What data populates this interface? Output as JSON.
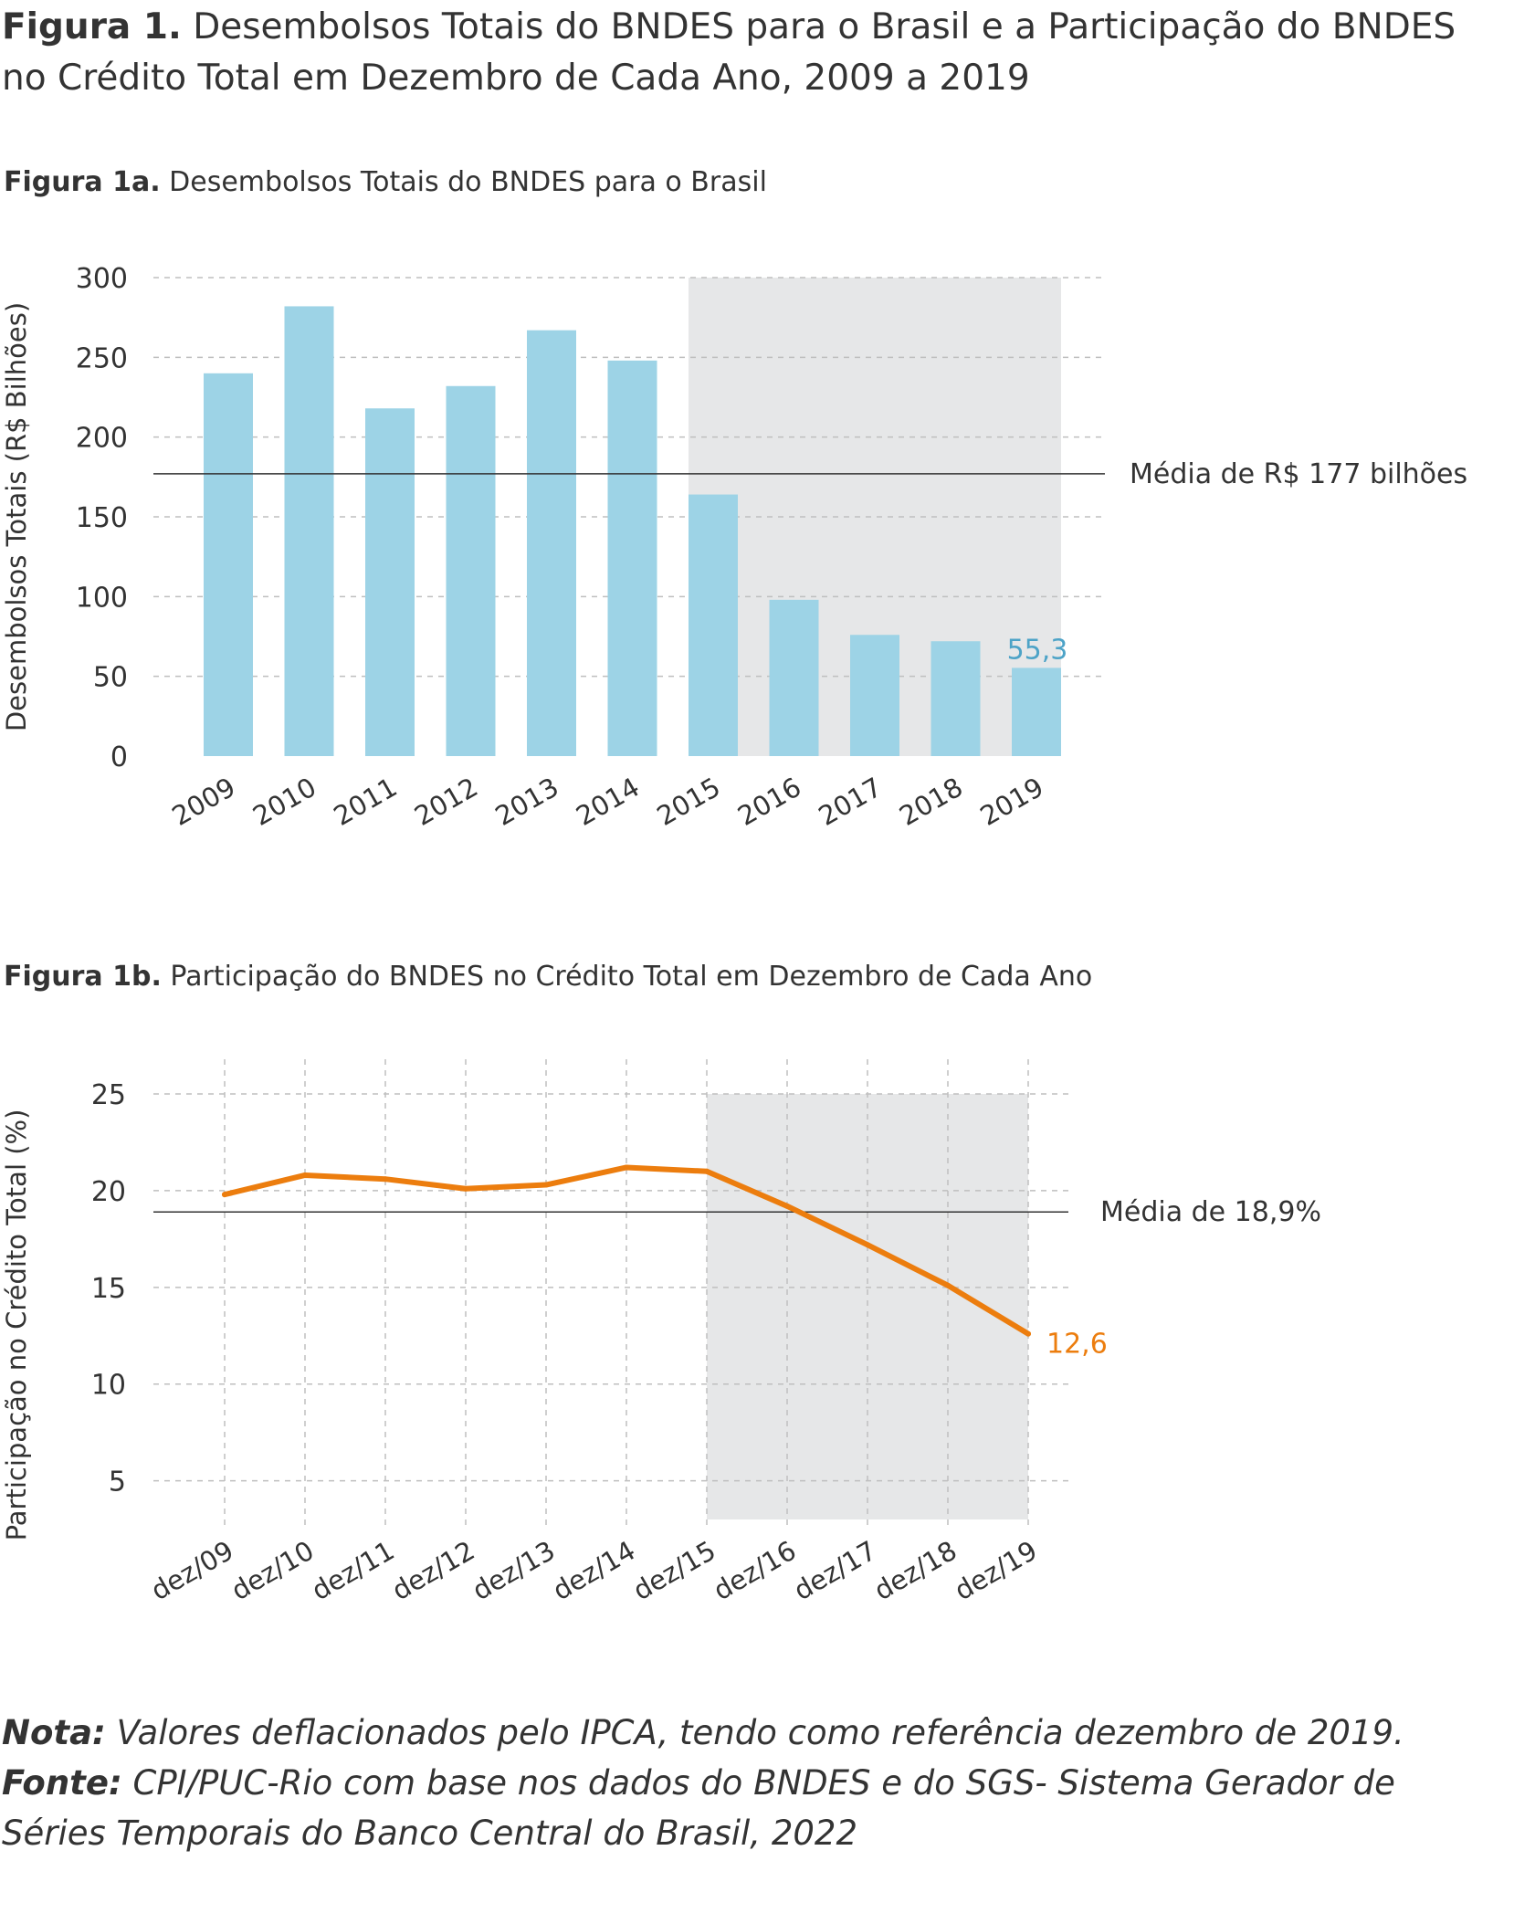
{
  "header": {
    "title_prefix": "Figura 1.",
    "title_text": "Desembolsos Totais do BNDES para o Brasil e a Participação do BNDES no Crédito Total em Dezembro de Cada Ano, 2009 a 2019"
  },
  "figure_a": {
    "prefix": "Figura 1a.",
    "title": "Desembolsos Totais do BNDES para o Brasil"
  },
  "figure_b": {
    "prefix": "Figura 1b.",
    "title": "Participação do BNDES no Crédito Total em Dezembro de Cada Ano"
  },
  "footer": {
    "note_label": "Nota:",
    "note_text": "Valores deflacionados pelo IPCA, tendo como referência dezembro de 2019.",
    "source_label": "Fonte:",
    "source_text": "CPI/PUC-Rio com base nos dados do BNDES e do SGS- Sistema Gerador de Séries Temporais do Banco Central do Brasil, 2022"
  },
  "colors": {
    "bar": "#9dd3e6",
    "bar_label": "#4da3c7",
    "line": "#ec7d0e",
    "shade": "#e6e7e8",
    "mean_line": "#333333",
    "grid": "#bfbfbf",
    "text": "#333333"
  },
  "chart_data": [
    {
      "type": "bar",
      "categories": [
        "2009",
        "2010",
        "2011",
        "2012",
        "2013",
        "2014",
        "2015",
        "2016",
        "2017",
        "2018",
        "2019"
      ],
      "values": [
        240,
        282,
        218,
        232,
        267,
        248,
        164,
        98,
        76,
        72,
        55.3
      ],
      "ylabel": "Desembolsos Totais (R$ Bilhões)",
      "xlabel": "",
      "ylim": [
        0,
        300
      ],
      "yticks": [
        "0",
        "50",
        "100",
        "150",
        "200",
        "250",
        "300"
      ],
      "mean": {
        "value": 177,
        "label": "Média de R$ 177 bilhões"
      },
      "data_label": {
        "category": "2019",
        "text": "55,3"
      },
      "shaded_from": "2015",
      "shaded_to": "2019",
      "grid": "horizontal dashed"
    },
    {
      "type": "line",
      "x": [
        "dez/09",
        "dez/10",
        "dez/11",
        "dez/12",
        "dez/13",
        "dez/14",
        "dez/15",
        "dez/16",
        "dez/17",
        "dez/18",
        "dez/19"
      ],
      "values": [
        19.8,
        20.8,
        20.6,
        20.1,
        20.3,
        21.2,
        21.0,
        19.2,
        17.2,
        15.1,
        12.6
      ],
      "ylabel": "Participação no Crédito Total (%)",
      "xlabel": "",
      "ylim": [
        3,
        25
      ],
      "yticks": [
        "5",
        "10",
        "15",
        "20",
        "25"
      ],
      "mean": {
        "value": 18.9,
        "label": "Média de 18,9%"
      },
      "data_label": {
        "x": "dez/19",
        "text": "12,6"
      },
      "shaded_from": "dez/15",
      "shaded_to": "dez/19",
      "grid": "horizontal and vertical dashed"
    }
  ]
}
